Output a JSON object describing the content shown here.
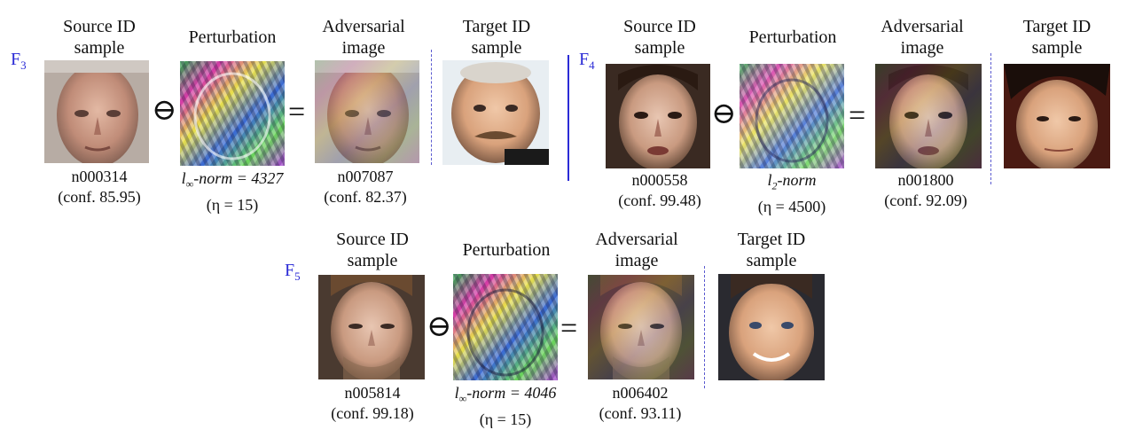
{
  "panels": [
    {
      "id": "F",
      "id_sub": "3",
      "headers": {
        "source": [
          "Source ID",
          "sample"
        ],
        "perturbation": "Perturbation",
        "adversarial": [
          "Adversarial",
          "image"
        ],
        "target": [
          "Target ID",
          "sample"
        ]
      },
      "source_caption": [
        "n000314",
        "(conf. 85.95)"
      ],
      "perturbation_norm": {
        "l": "l",
        "sub": "∞",
        "rest": "-norm = 4327"
      },
      "perturbation_eta": "(η = 15)",
      "adversarial_caption": [
        "n007087",
        "(conf. 82.37)"
      ],
      "operators": {
        "minus": "⊖",
        "equals": "="
      }
    },
    {
      "id": "F",
      "id_sub": "4",
      "headers": {
        "source": [
          "Source ID",
          "sample"
        ],
        "perturbation": "Perturbation",
        "adversarial": [
          "Adversarial",
          "image"
        ],
        "target": [
          "Target ID",
          "sample"
        ]
      },
      "source_caption": [
        "n000558",
        "(conf. 99.48)"
      ],
      "perturbation_norm": {
        "l": "l",
        "sub": "2",
        "rest": "-norm"
      },
      "perturbation_eta": "(η = 4500)",
      "adversarial_caption": [
        "n001800",
        "(conf. 92.09)"
      ],
      "operators": {
        "minus": "⊖",
        "equals": "="
      }
    },
    {
      "id": "F",
      "id_sub": "5",
      "headers": {
        "source": [
          "Source ID",
          "sample"
        ],
        "perturbation": "Perturbation",
        "adversarial": [
          "Adversarial",
          "image"
        ],
        "target": [
          "Target ID",
          "sample"
        ]
      },
      "source_caption": [
        "n005814",
        "(conf. 99.18)"
      ],
      "perturbation_norm": {
        "l": "l",
        "sub": "∞",
        "rest": "-norm = 4046"
      },
      "perturbation_eta": "(η = 15)",
      "adversarial_caption": [
        "n006402",
        "(conf. 93.11)"
      ],
      "operators": {
        "minus": "⊖",
        "equals": "="
      }
    }
  ],
  "colors": {
    "panel_label": "#2b2bd6",
    "divider": "#5a5ad0"
  }
}
